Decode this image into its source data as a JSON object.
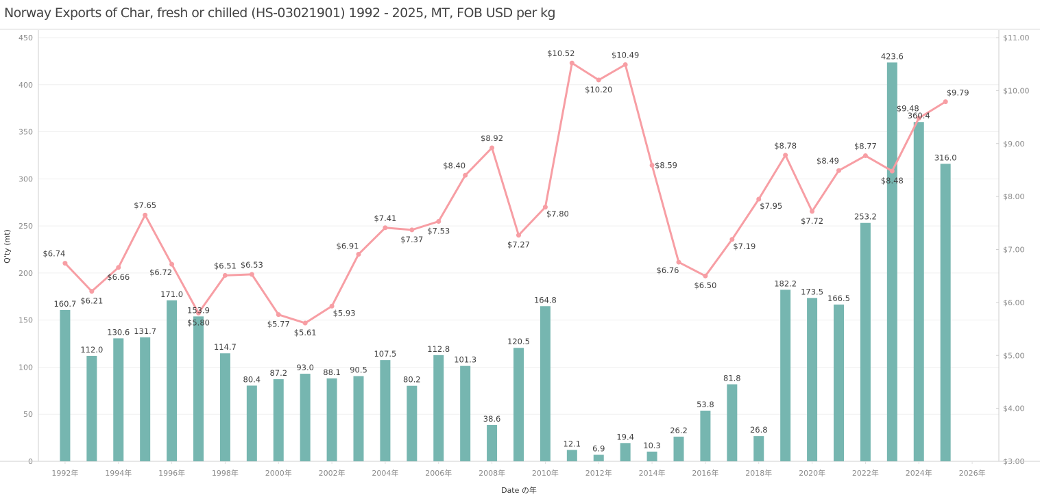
{
  "title": "Norway Exports of Char, fresh or chilled (HS-03021901) 1992 - 2025, MT, FOB USD per kg",
  "colors": {
    "bar": "#76b6b0",
    "line": "#f79ea4",
    "grid": "#efefef",
    "axis": "#cfcfcf"
  },
  "chart_data": {
    "type": "bar+line",
    "title": "Norway Exports of Char, fresh or chilled (HS-03021901) 1992 - 2025, MT, FOB USD per kg",
    "xlabel": "Date の年",
    "ylabel": "Q'ty (mt)",
    "y2label": "",
    "x_range": [
      1991,
      2027
    ],
    "x_ticks": [
      1992,
      1994,
      1996,
      1998,
      2000,
      2002,
      2004,
      2006,
      2008,
      2010,
      2012,
      2014,
      2016,
      2018,
      2020,
      2022,
      2024,
      2026
    ],
    "x_tick_suffix": "年",
    "ylim": [
      0,
      450
    ],
    "y_ticks": [
      0,
      50,
      100,
      150,
      200,
      250,
      300,
      350,
      400,
      450
    ],
    "y2lim": [
      3,
      11
    ],
    "y2_ticks": [
      "$3.00",
      "$4.00",
      "$5.00",
      "$6.00",
      "$7.00",
      "$8.00",
      "$9.00",
      "$10.00",
      "$11.00"
    ],
    "grid": true,
    "x": [
      1992,
      1993,
      1994,
      1995,
      1996,
      1997,
      1998,
      1999,
      2000,
      2001,
      2002,
      2003,
      2004,
      2005,
      2006,
      2007,
      2008,
      2009,
      2010,
      2011,
      2012,
      2013,
      2014,
      2015,
      2016,
      2017,
      2018,
      2019,
      2020,
      2021,
      2022,
      2023,
      2024,
      2025
    ],
    "series": [
      {
        "name": "Q'ty (mt)",
        "type": "bar",
        "axis": "left",
        "values": [
          160.7,
          112.0,
          130.6,
          131.7,
          171.0,
          153.9,
          114.7,
          80.4,
          87.2,
          93.0,
          88.1,
          90.5,
          107.5,
          80.2,
          112.8,
          101.3,
          38.6,
          120.5,
          164.8,
          12.1,
          6.9,
          19.4,
          10.3,
          26.2,
          53.8,
          81.8,
          26.8,
          182.2,
          173.5,
          166.5,
          253.2,
          423.6,
          360.4,
          316.0
        ],
        "labels": [
          "160.7",
          "112.0",
          "130.6",
          "131.7",
          "171.0",
          "153.9",
          "114.7",
          "80.4",
          "87.2",
          "93.0",
          "88.1",
          "90.5",
          "107.5",
          "80.2",
          "112.8",
          "101.3",
          "38.6",
          "120.5",
          "164.8",
          "12.1",
          "6.9",
          "19.4",
          "10.3",
          "26.2",
          "53.8",
          "81.8",
          "26.8",
          "182.2",
          "173.5",
          "166.5",
          "253.2",
          "423.6",
          "360.4",
          "316.0"
        ]
      },
      {
        "name": "FOB USD per kg",
        "type": "line",
        "axis": "right",
        "values": [
          6.74,
          6.21,
          6.66,
          7.65,
          6.72,
          5.8,
          6.51,
          6.53,
          5.77,
          5.61,
          5.93,
          6.91,
          7.41,
          7.37,
          7.53,
          8.4,
          8.92,
          7.27,
          7.8,
          10.52,
          10.2,
          10.49,
          8.59,
          6.76,
          6.5,
          7.19,
          7.95,
          8.78,
          7.72,
          8.49,
          8.77,
          8.48,
          9.48,
          9.79
        ],
        "labels": [
          "$6.74",
          "$6.21",
          "$6.66",
          "$7.65",
          "$6.72",
          "$5.80",
          "$6.51",
          "$6.53",
          "$5.77",
          "$5.61",
          "$5.93",
          "$6.91",
          "$7.41",
          "$7.37",
          "$7.53",
          "$8.40",
          "$8.92",
          "$7.27",
          "$7.80",
          "$10.52",
          "$10.20",
          "$10.49",
          "$8.59",
          "$6.76",
          "$6.50",
          "$7.19",
          "$7.95",
          "$8.78",
          "$7.72",
          "$8.49",
          "$8.77",
          "$8.48",
          "$9.48",
          "$9.79"
        ],
        "label_positions": [
          "above-left",
          "below",
          "below",
          "above",
          "below-left",
          "below",
          "above",
          "above",
          "below",
          "below",
          "right-below",
          "left-above",
          "above",
          "below",
          "below",
          "above-left",
          "above",
          "below",
          "right-below",
          "above-left",
          "below",
          "above",
          "right",
          "below-left",
          "below",
          "right-below",
          "right-below",
          "above",
          "below",
          "above-left",
          "above",
          "below",
          "above-left",
          "above-right"
        ]
      }
    ]
  }
}
